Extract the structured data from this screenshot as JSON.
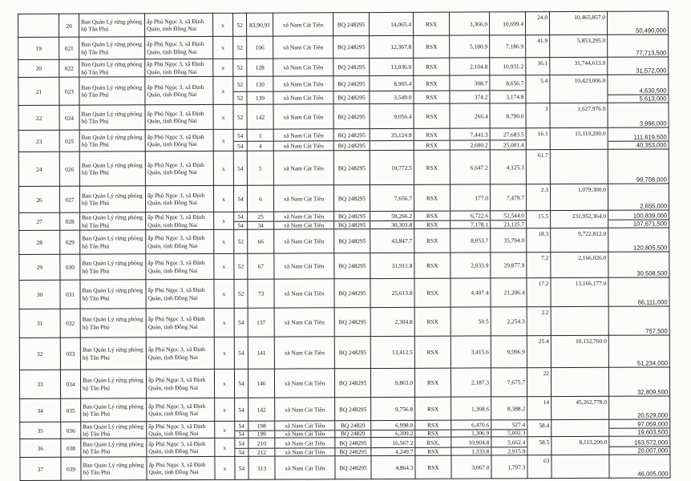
{
  "records": [
    {
      "stt": "",
      "code": "20",
      "owner": "Ban Quản Lý rừng phòng hộ Tân Phú",
      "address": "ấp Phú Ngọc 3, xã Định Quán, tỉnh Đồng Nai",
      "mark": "x",
      "parcels": [
        {
          "sheet": "52",
          "plot": "83,90,91",
          "commune": "xã Nam Cát Tiên",
          "bq": "BQ 248295",
          "area": "14,065.4",
          "type": "RSX",
          "v1": "3,366.0",
          "v2": "10,699.4"
        }
      ],
      "pct": "24.0",
      "amount": "10,465,857.0",
      "payments": [
        "50,490,000"
      ]
    },
    {
      "stt": "19",
      "code": "021",
      "owner": "Ban Quản Lý rừng phòng hộ Tân Phú",
      "address": "ấp Phú Ngọc 3, xã Định Quán, tỉnh Đồng Nai",
      "mark": "x",
      "parcels": [
        {
          "sheet": "52",
          "plot": "106",
          "commune": "xã Nam Cát Tiên",
          "bq": "BQ 248295",
          "area": "12,367.8",
          "type": "RSX",
          "v1": "5,180.9",
          "v2": "7,186.9"
        }
      ],
      "pct": "41.9",
      "amount": "5,853,295.0",
      "payments": [
        "77,713,500"
      ]
    },
    {
      "stt": "20",
      "code": "022",
      "owner": "Ban Quản Lý rừng phòng hộ Tân Phú",
      "address": "ấp Phú Ngọc 3, xã Định Quán, tỉnh Đồng Nai",
      "mark": "x",
      "parcels": [
        {
          "sheet": "52",
          "plot": "128",
          "commune": "xã Nam Cát Tiên",
          "bq": "BQ 248295",
          "area": "13,036.0",
          "type": "RSX",
          "v1": "2,104.8",
          "v2": "10,931.2"
        }
      ],
      "pct": "16.1",
      "amount": "31,744,613.0",
      "payments": [
        "31,572,000"
      ]
    },
    {
      "stt": "21",
      "code": "023",
      "owner": "Ban Quản Lý rừng phòng hộ Tân Phú",
      "address": "ấp Phú Ngọc 3, xã Định Quán, tỉnh Đồng Nai",
      "mark": "x",
      "parcels": [
        {
          "sheet": "52",
          "plot": "130",
          "commune": "xã Nam Cát Tiên",
          "bq": "BQ 248295",
          "area": "8,965.4",
          "type": "RSX",
          "v1": "308.7",
          "v2": "8,656.7"
        },
        {
          "sheet": "52",
          "plot": "139",
          "commune": "xã Nam Cát Tiên",
          "bq": "BQ 248295",
          "area": "3,549.0",
          "type": "RSX",
          "v1": "374.2",
          "v2": "3,174.8"
        }
      ],
      "pct": "5.4",
      "amount": "10,423,006.0",
      "payments": [
        "4,630,500",
        "5,613,000"
      ]
    },
    {
      "stt": "22",
      "code": "024",
      "owner": "Ban Quản Lý rừng phòng hộ Tân Phú",
      "address": "ấp Phú Ngọc 3, xã Định Quán, tỉnh Đồng Nai",
      "mark": "x",
      "parcels": [
        {
          "sheet": "52",
          "plot": "142",
          "commune": "xã Nam Cát Tiên",
          "bq": "BQ 248295",
          "area": "9,056.4",
          "type": "RSX",
          "v1": "266.4",
          "v2": "8,790.0"
        }
      ],
      "pct": "3",
      "amount": "1,627,976.0",
      "payments": [
        "3,996,000"
      ]
    },
    {
      "stt": "23",
      "code": "025",
      "owner": "Ban Quản Lý rừng phòng hộ Tân Phú",
      "address": "ấp Phú Ngọc 3, xã Định Quán, tỉnh Đồng Nai",
      "mark": "x",
      "parcels": [
        {
          "sheet": "54",
          "plot": "1",
          "commune": "xã Nam Cát Tiên",
          "bq": "BQ 248295",
          "area": "35,124.8",
          "type": "RSX",
          "v1": "7,441.3",
          "v2": "27,683.5"
        },
        {
          "sheet": "54",
          "plot": "4",
          "commune": "xã Nam Cát Tiên",
          "bq": "BQ 248295",
          "area": "",
          "type": "RSX",
          "v1": "2,690.2",
          "v2": "25,001.4"
        }
      ],
      "pct": "16.1",
      "amount": "15,110,200.0",
      "payments": [
        "111,619,500",
        "40,353,000"
      ]
    },
    {
      "stt": "24",
      "code": "026",
      "owner": "Ban Quản Lý rừng phòng hộ Tân Phú",
      "address": "ấp Phú Ngọc 3, xã Định Quán, tỉnh Đồng Nai",
      "mark": "x",
      "parcels": [
        {
          "sheet": "54",
          "plot": "5",
          "commune": "xã Nam Cát Tiên",
          "bq": "BQ 248295",
          "area": "10,772.5",
          "type": "RSX",
          "v1": "6,647.2",
          "v2": "4,125.3"
        }
      ],
      "pct": "61.7",
      "amount": "",
      "payments": [
        "99,708,000"
      ]
    },
    {
      "stt": "26",
      "code": "027",
      "owner": "Ban Quản Lý rừng phòng hộ Tân Phú",
      "address": "ấp Phú Ngọc 3, xã Định Quán, tỉnh Đồng Nai",
      "mark": "x",
      "parcels": [
        {
          "sheet": "54",
          "plot": "6",
          "commune": "xã Nam Cát Tiên",
          "bq": "BQ 248295",
          "area": "7,656.7",
          "type": "RSX",
          "v1": "177.0",
          "v2": "7,479.7"
        }
      ],
      "pct": "2.3",
      "amount": "1,079,300.0",
      "payments": [
        "2,655,000"
      ]
    },
    {
      "stt": "27",
      "code": "028",
      "owner": "Ban Quản Lý rừng phòng hộ Tân Phú",
      "address": "ấp Phú Ngọc 3, xã Định Quán, tỉnh Đồng Nai",
      "mark": "x",
      "parcels": [
        {
          "sheet": "54",
          "plot": "25",
          "commune": "xã Nam Cát Tiên",
          "bq": "BQ 248295",
          "area": "59,266.2",
          "type": "RSX",
          "v1": "6,722.6",
          "v2": "52,544.0"
        },
        {
          "sheet": "54",
          "plot": "34",
          "commune": "xã Nam Cát Tiên",
          "bq": "BQ 248295",
          "area": "30,303.8",
          "type": "RSX",
          "v1": "7,178.1",
          "v2": "23,125.7"
        }
      ],
      "pct": "15.5",
      "amount": "231,952,364.0",
      "payments": [
        "100,839,000",
        "107,671,500"
      ]
    },
    {
      "stt": "28",
      "code": "029",
      "owner": "Ban Quản Lý rừng phòng hộ Tân Phú",
      "address": "ấp Phú Ngọc 3, xã Định Quán, tỉnh Đồng Nai",
      "mark": "x",
      "parcels": [
        {
          "sheet": "52",
          "plot": "66",
          "commune": "xã Nam Cát Tiên",
          "bq": "BQ 248295",
          "area": "43,847.7",
          "type": "RSX",
          "v1": "8,053.7",
          "v2": "35,794.0"
        }
      ],
      "pct": "18.3",
      "amount": "9,722,812.0",
      "payments": [
        "120,805,500"
      ]
    },
    {
      "stt": "29",
      "code": "030",
      "owner": "Ban Quản Lý rừng phòng hộ Tân Phú",
      "address": "ấp Phú Ngọc 3, xã Định Quán, tỉnh Đồng Nai",
      "mark": "x",
      "parcels": [
        {
          "sheet": "52",
          "plot": "67",
          "commune": "xã Nam Cát Tiên",
          "bq": "BQ 248295",
          "area": "31,911.8",
          "type": "RSX",
          "v1": "2,033.9",
          "v2": "29,877.9"
        }
      ],
      "pct": "7.2",
      "amount": "2,166,026.0",
      "payments": [
        "30,508,500"
      ]
    },
    {
      "stt": "30",
      "code": "031",
      "owner": "Ban Quản Lý rừng phòng hộ Tân Phú",
      "address": "ấp Phú Ngọc 3, xã Định Quán, tỉnh Đồng Nai",
      "mark": "x",
      "parcels": [
        {
          "sheet": "52",
          "plot": "73",
          "commune": "xã Nam Cát Tiên",
          "bq": "BQ 248295",
          "area": "25,613.8",
          "type": "RSX",
          "v1": "4,407.4",
          "v2": "21,206.4"
        }
      ],
      "pct": "17.2",
      "amount": "13,166,177.0",
      "payments": [
        "66,111,000"
      ]
    },
    {
      "stt": "31",
      "code": "032",
      "owner": "Ban Quản Lý rừng phòng hộ Tân Phú",
      "address": "ấp Phú Ngọc 3, xã Định Quán, tỉnh Đồng Nai",
      "mark": "x",
      "parcels": [
        {
          "sheet": "54",
          "plot": "137",
          "commune": "xã Nam Cát Tiên",
          "bq": "BQ 248295",
          "area": "2,304.8",
          "type": "RSX",
          "v1": "50.5",
          "v2": "2,254.3"
        }
      ],
      "pct": "2.2",
      "amount": "",
      "payments": [
        "757,500"
      ]
    },
    {
      "stt": "32",
      "code": "033",
      "owner": "Ban Quản Lý rừng phòng hộ Tân Phú",
      "address": "ấp Phú Ngọc 3, xã Định Quán, tỉnh Đồng Nai",
      "mark": "x",
      "parcels": [
        {
          "sheet": "54",
          "plot": "141",
          "commune": "xã Nam Cát Tiên",
          "bq": "BQ 248295",
          "area": "13,412.5",
          "type": "RSX",
          "v1": "3,415.6",
          "v2": "9,996.9"
        }
      ],
      "pct": "25.4",
      "amount": "10,132,760.0",
      "payments": [
        "51,234,000"
      ]
    },
    {
      "stt": "33",
      "code": "034",
      "owner": "Ban Quản Lý rừng phòng hộ Tân Phú",
      "address": "ấp Phú Ngọc 3, xã Định Quán, tỉnh Đồng Nai",
      "mark": "x",
      "parcels": [
        {
          "sheet": "54",
          "plot": "146",
          "commune": "xã Nam Cát Tiên",
          "bq": "BQ 248295",
          "area": "9,863.0",
          "type": "RSX",
          "v1": "2,187.3",
          "v2": "7,675.7"
        }
      ],
      "pct": "22",
      "amount": "",
      "payments": [
        "32,809,500"
      ]
    },
    {
      "stt": "34",
      "code": "035",
      "owner": "Ban Quản Lý rừng phòng hộ Tân Phú",
      "address": "ấp Phú Ngọc 3, xã Định Quán, tỉnh Đồng Nai",
      "mark": "x",
      "parcels": [
        {
          "sheet": "54",
          "plot": "142",
          "commune": "xã Nam Cát Tiên",
          "bq": "BQ 248295",
          "area": "9,756.8",
          "type": "RSX",
          "v1": "1,368.6",
          "v2": "8,388.2"
        }
      ],
      "pct": "14",
      "amount": "45,262,778.0",
      "payments": [
        "20,529,000"
      ]
    },
    {
      "stt": "35",
      "code": "036",
      "owner": "Ban Quản Lý rừng phòng hộ Tân Phú",
      "address": "ấp Phú Ngọc 3, xã Định Quán, tỉnh Đồng Nai",
      "mark": "x",
      "parcels": [
        {
          "sheet": "54",
          "plot": "198",
          "commune": "xã Nam Cát Tiên",
          "bq": "BQ 24829",
          "area": "6,998.0",
          "type": "RSX",
          "v1": "6,470.6",
          "v2": "527.4"
        },
        {
          "sheet": "54",
          "plot": "199",
          "commune": "xã Nam Cát Tiên",
          "bq": "BQ 24829",
          "area": "6,309.2",
          "type": "RSX",
          "v1": "1,306.9",
          "v2": "5,002.3"
        }
      ],
      "pct": "58.4",
      "amount": "",
      "payments": [
        "97,059,000",
        "19,603,500"
      ]
    },
    {
      "stt": "36",
      "code": "038",
      "owner": "Ban Quản Lý rừng phòng hộ Tân Phú",
      "address": "ấp Phú Ngọc 3, xã Định Quán, tỉnh Đồng Nai",
      "mark": "x",
      "parcels": [
        {
          "sheet": "54",
          "plot": "210",
          "commune": "xã Nam Cát Tiên",
          "bq": "BQ 248295",
          "area": "16,567.2",
          "type": "RSX,",
          "v1": "10,904.8",
          "v2": "5,662.4"
        },
        {
          "sheet": "54",
          "plot": "212",
          "commune": "xã Nam Cát Tiên",
          "bq": "BQ 248295",
          "area": "4,249.7",
          "type": "RSX",
          "v1": "1,333.8",
          "v2": "2,915.9"
        }
      ],
      "pct": "58.5",
      "amount": "8,113,200.0",
      "payments": [
        "163,572,000",
        "20,007,000"
      ]
    },
    {
      "stt": "37",
      "code": "039",
      "owner": "Ban Quản Lý rừng phòng hộ Tân Phú",
      "address": "ấp Phú Ngọc 3, xã Định Quán, tỉnh Đồng Nai",
      "mark": "x",
      "parcels": [
        {
          "sheet": "54",
          "plot": "313",
          "commune": "xã Nam Cát Tiên",
          "bq": "BQ 248295",
          "area": "4,864.3",
          "type": "RSX",
          "v1": "3,067.0",
          "v2": "1,797.3"
        }
      ],
      "pct": "63",
      "amount": "",
      "payments": [
        "46,005,000"
      ]
    }
  ]
}
